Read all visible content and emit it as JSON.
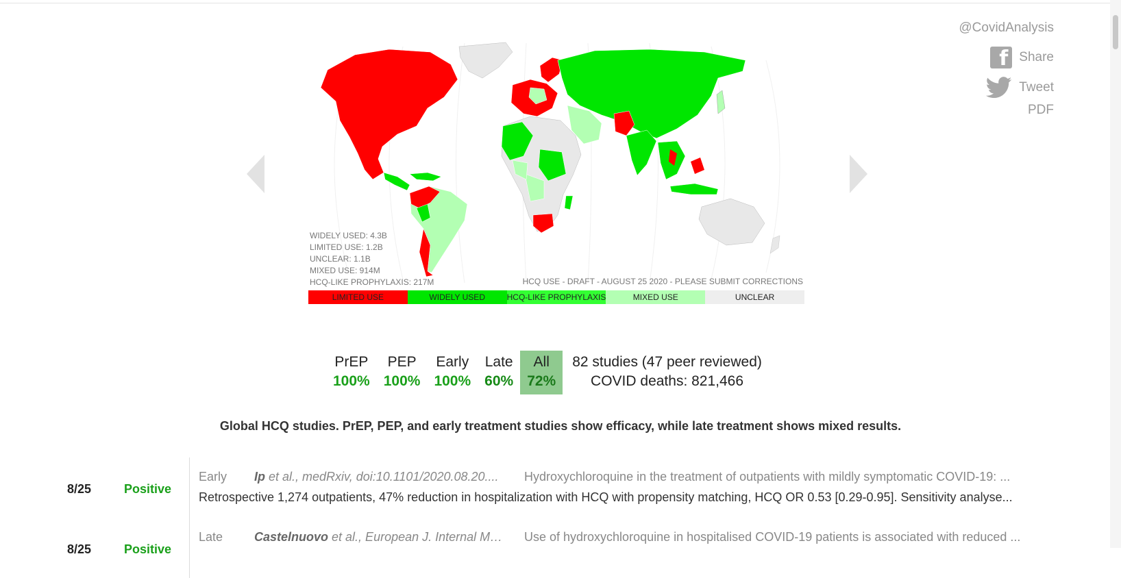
{
  "social": {
    "handle": "@CovidAnalysis",
    "share_label": "Share",
    "tweet_label": "Tweet",
    "pdf_label": "PDF"
  },
  "map": {
    "stats": {
      "widely_used": "WIDELY USED: 4.3B",
      "limited_use": "LIMITED USE: 1.2B",
      "unclear": "UNCLEAR: 1.1B",
      "mixed_use": "MIXED USE: 914M",
      "prophylaxis": "HCQ-LIKE PROPHYLAXIS: 217M"
    },
    "draft_note": "HCQ USE - DRAFT - AUGUST 25 2020 - PLEASE SUBMIT CORRECTIONS",
    "legend": [
      {
        "label": "LIMITED USE",
        "color": "#ff0000"
      },
      {
        "label": "WIDELY USED",
        "color": "#00e600"
      },
      {
        "label": "HCQ-LIKE PROPHYLAXIS",
        "color": "#33ff33"
      },
      {
        "label": "MIXED USE",
        "color": "#b3ffb3"
      },
      {
        "label": "UNCLEAR",
        "color": "#eeeeee"
      }
    ],
    "colors": {
      "limited": "#ff0000",
      "widely": "#00e600",
      "mixed": "#b3ffb3",
      "unclear": "#e8e8e8"
    }
  },
  "stats": {
    "items": [
      {
        "name": "PrEP",
        "pct": "100%"
      },
      {
        "name": "PEP",
        "pct": "100%"
      },
      {
        "name": "Early",
        "pct": "100%"
      },
      {
        "name": "Late",
        "pct": "60%"
      },
      {
        "name": "All",
        "pct": "72%"
      }
    ],
    "studies_line": "82 studies (47 peer reviewed)",
    "deaths_line": "COVID deaths: 821,466"
  },
  "summary": "Global HCQ studies. PrEP, PEP, and early treatment studies show efficacy, while late treatment shows mixed results.",
  "studies": [
    {
      "date": "8/25",
      "result": "Positive",
      "stage": "Early",
      "author": "Ip",
      "cite_rest": " et al., medRxiv, doi:10.1101/2020.08.20....",
      "title": "Hydroxychloroquine in the treatment of outpatients with mildly symptomatic COVID-19: ...",
      "desc": "Retrospective 1,274 outpatients, 47% reduction in hospitalization with HCQ with propensity matching, HCQ OR 0.53 [0.29-0.95]. Sensitivity analyse..."
    },
    {
      "date": "8/25",
      "result": "Positive",
      "stage": "Late",
      "author": "Castelnuovo",
      "cite_rest": " et al., European J. Internal Me...",
      "title": "Use of hydroxychloroquine in hospitalised COVID-19 patients is associated with reduced ...",
      "desc": ""
    }
  ]
}
